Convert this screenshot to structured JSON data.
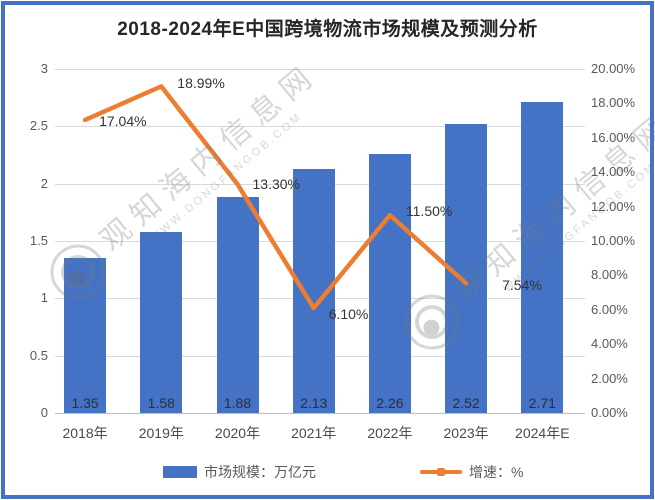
{
  "title": "2018-2024年E中国跨境物流市场规模及预测分析",
  "legend": {
    "bar_label": "市场规模：万亿元",
    "line_label": "增速：%"
  },
  "watermark": {
    "text": "观知海内信息网",
    "url": "WWW.DONGFANGOB.COM"
  },
  "colors": {
    "bar": "#4472C4",
    "line": "#ED7D31",
    "border": "#4472C4",
    "gridline": "#D9D9D9",
    "axis": "#BFBFBF",
    "tick_text": "#595959"
  },
  "chart_data": {
    "type": "bar",
    "subtype": "combo-bar-line",
    "title": "2018-2024年E中国跨境物流市场规模及预测分析",
    "categories": [
      "2018年",
      "2019年",
      "2020年",
      "2021年",
      "2022年",
      "2023年",
      "2024年E"
    ],
    "series": [
      {
        "name": "市场规模：万亿元",
        "type": "bar",
        "axis": "left",
        "values": [
          1.35,
          1.58,
          1.88,
          2.13,
          2.26,
          2.52,
          2.71
        ],
        "value_labels": [
          "1.35",
          "1.58",
          "1.88",
          "2.13",
          "2.26",
          "2.52",
          "2.71"
        ]
      },
      {
        "name": "增速：%",
        "type": "line",
        "axis": "right",
        "values": [
          17.04,
          18.99,
          13.3,
          6.1,
          11.5,
          7.54
        ],
        "value_labels": [
          "17.04%",
          "18.99%",
          "13.30%",
          "6.10%",
          "11.50%",
          "7.54%"
        ]
      }
    ],
    "left_axis": {
      "min": 0,
      "max": 3,
      "step": 0.5,
      "tick_labels": [
        "0",
        "0.5",
        "1",
        "1.5",
        "2",
        "2.5",
        "3"
      ]
    },
    "right_axis": {
      "min": 0,
      "max": 20,
      "step": 2,
      "tick_labels": [
        "0.00%",
        "2.00%",
        "4.00%",
        "6.00%",
        "8.00%",
        "10.00%",
        "12.00%",
        "14.00%",
        "16.00%",
        "18.00%",
        "20.00%"
      ]
    },
    "grid": "horizontal",
    "legend_position": "bottom"
  }
}
